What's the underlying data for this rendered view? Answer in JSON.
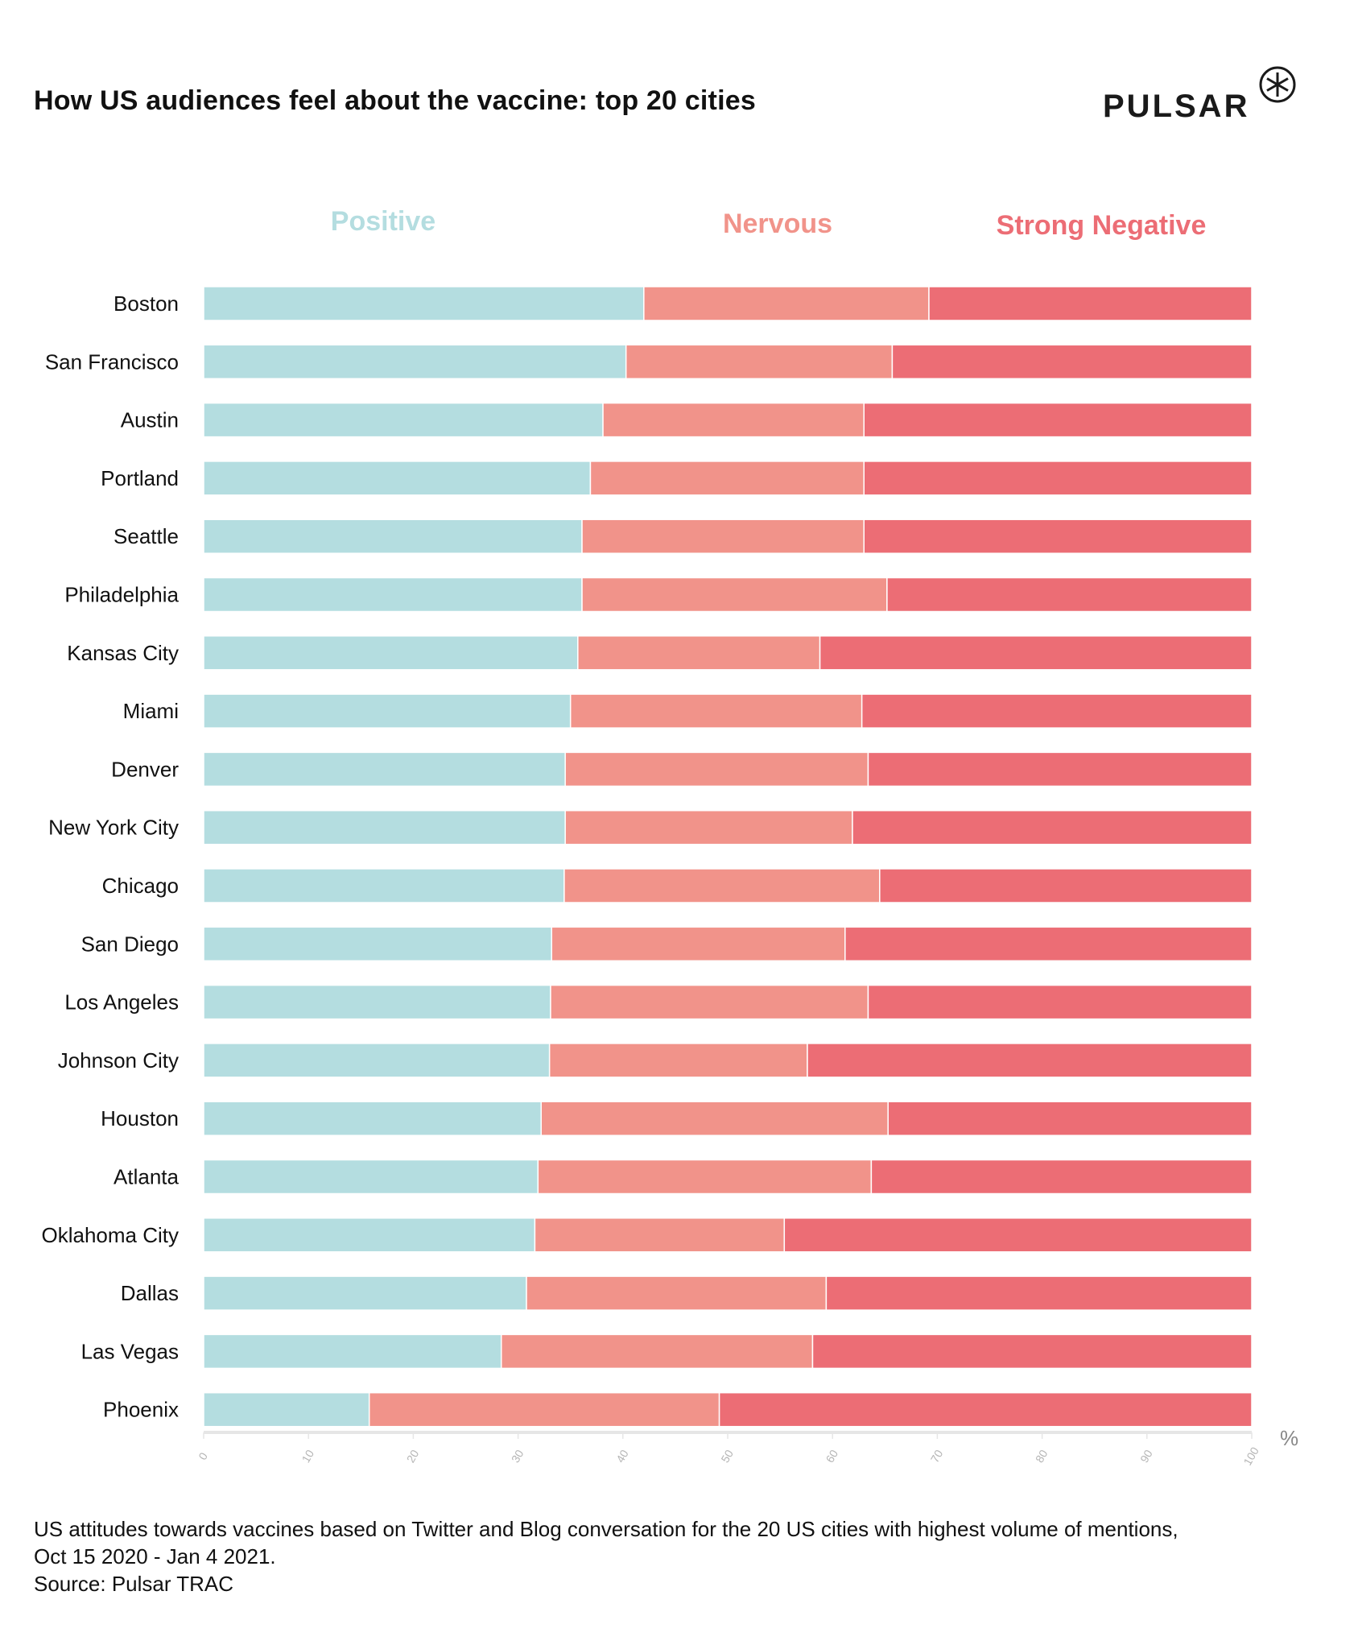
{
  "header": {
    "title": "How US audiences feel about the vaccine: top 20 cities",
    "logo_text": "PULSAR",
    "logo_icon": "asterisk-circle-icon"
  },
  "colors": {
    "positive": "#b4dde0",
    "nervous": "#f1938a",
    "strong_negative": "#ec6d75",
    "axis": "#e6e6e6",
    "tick_label": "#b5b5b5"
  },
  "chart_data": {
    "type": "bar",
    "orientation": "horizontal",
    "stacked": true,
    "title": "How US audiences feel about the vaccine: top 20 cities",
    "xlabel": "%",
    "ylabel": "",
    "xlim": [
      0,
      100
    ],
    "xticks": [
      "0",
      "10",
      "20",
      "30",
      "40",
      "50",
      "60",
      "70",
      "80",
      "90",
      "100"
    ],
    "legend_position": "top",
    "grid": false,
    "categories": [
      "Boston",
      "San Francisco",
      "Austin",
      "Portland",
      "Seattle",
      "Philadelphia",
      "Kansas City",
      "Miami",
      "Denver",
      "New York City",
      "Chicago",
      "San Diego",
      "Los Angeles",
      "Johnson City",
      "Houston",
      "Atlanta",
      "Oklahoma City",
      "Dallas",
      "Las Vegas",
      "Phoenix"
    ],
    "series": [
      {
        "name": "Positive",
        "color": "#b4dde0",
        "values": [
          42.0,
          40.3,
          38.1,
          36.9,
          36.1,
          36.1,
          35.7,
          35.0,
          34.5,
          34.5,
          34.4,
          33.2,
          33.1,
          33.0,
          32.2,
          31.9,
          31.6,
          30.8,
          28.4,
          15.8
        ]
      },
      {
        "name": "Nervous",
        "color": "#f1938a",
        "values": [
          27.2,
          25.4,
          24.9,
          26.1,
          26.9,
          29.1,
          23.1,
          27.8,
          28.9,
          27.4,
          30.1,
          28.0,
          30.3,
          24.6,
          33.1,
          31.8,
          23.8,
          28.6,
          29.7,
          33.4
        ]
      },
      {
        "name": "Strong Negative",
        "color": "#ec6d75",
        "values": [
          30.8,
          34.3,
          37.0,
          37.0,
          37.0,
          34.8,
          41.2,
          37.2,
          36.6,
          38.1,
          35.5,
          38.8,
          36.6,
          42.4,
          34.7,
          36.3,
          44.6,
          40.6,
          41.9,
          50.8
        ]
      }
    ]
  },
  "legend": [
    {
      "label": "Positive",
      "color": "#b4dde0"
    },
    {
      "label": "Nervous",
      "color": "#f1938a"
    },
    {
      "label": "Strong Negative",
      "color": "#ec6d75"
    }
  ],
  "caption": {
    "line1": "US attitudes towards vaccines based on Twitter and Blog conversation for the 20 US cities with highest volume of mentions,",
    "line2": "Oct 15 2020 - Jan 4 2021.",
    "line3": "Source: Pulsar TRAC"
  }
}
